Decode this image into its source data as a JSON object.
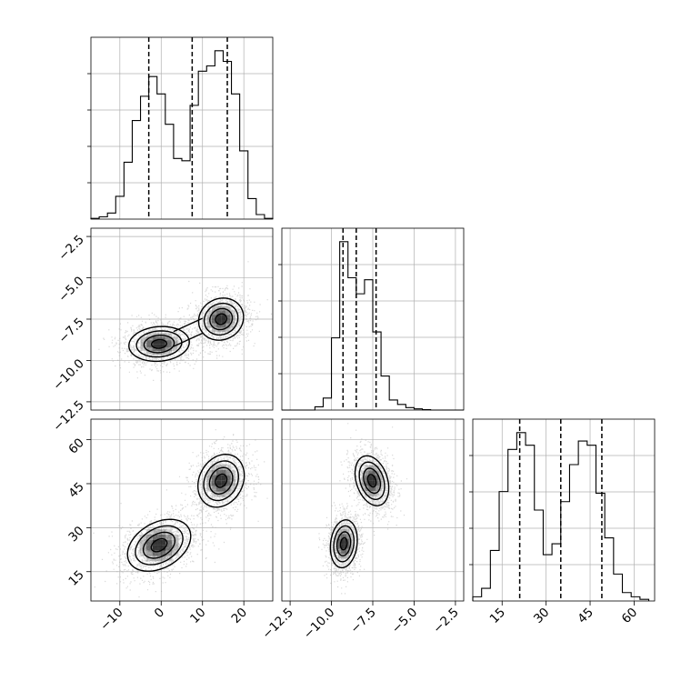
{
  "chart_data": {
    "type": "corner",
    "grid": true,
    "params": [
      {
        "id": "p0",
        "range": [
          -17,
          27
        ],
        "ticks": [
          -10,
          0,
          10,
          20
        ],
        "tick_labels": [
          "−10",
          "0",
          "10",
          "20"
        ]
      },
      {
        "id": "p1",
        "range": [
          -13,
          -2
        ],
        "ticks": [
          -12.5,
          -10.0,
          -7.5,
          -5.0,
          -2.5
        ],
        "tick_labels": [
          "−12.5",
          "−10.0",
          "−7.5",
          "−5.0",
          "−2.5"
        ]
      },
      {
        "id": "p2",
        "range": [
          5,
          67
        ],
        "ticks": [
          15,
          30,
          45,
          60
        ],
        "tick_labels": [
          "15",
          "30",
          "45",
          "60"
        ]
      }
    ],
    "histograms": [
      {
        "param": "p0",
        "bin_edges": [
          -17,
          -15,
          -13,
          -11,
          -9,
          -7,
          -5,
          -3,
          -1,
          1,
          3,
          5,
          7,
          9,
          11,
          13,
          15,
          17,
          19,
          21,
          23,
          25,
          27
        ],
        "counts": [
          1,
          3,
          8,
          30,
          75,
          130,
          162,
          188,
          165,
          125,
          80,
          77,
          150,
          195,
          202,
          222,
          208,
          165,
          90,
          27,
          6,
          1
        ],
        "quantile_lines": [
          -3,
          7.5,
          16
        ]
      },
      {
        "param": "p1",
        "bin_edges": [
          -13.0,
          -12.5,
          -12.0,
          -11.5,
          -11.0,
          -10.5,
          -10.0,
          -9.5,
          -9.0,
          -8.5,
          -8.0,
          -7.5,
          -7.0,
          -6.5,
          -6.0,
          -5.5,
          -5.0,
          -4.5,
          -4.0,
          -3.5,
          -3.0,
          -2.5,
          -2.0
        ],
        "counts": [
          0,
          0,
          0,
          0,
          8,
          30,
          180,
          420,
          330,
          290,
          325,
          195,
          85,
          25,
          14,
          6,
          3,
          1,
          0,
          0,
          0,
          0
        ],
        "quantile_lines": [
          -9.3,
          -8.5,
          -7.3
        ]
      },
      {
        "param": "p2",
        "bin_edges": [
          5,
          8,
          11,
          14,
          17,
          20,
          23,
          26,
          29,
          32,
          35,
          38,
          41,
          44,
          47,
          50,
          53,
          56,
          59,
          62,
          65
        ],
        "counts": [
          5,
          15,
          60,
          130,
          180,
          200,
          185,
          108,
          55,
          68,
          118,
          162,
          190,
          185,
          128,
          75,
          32,
          10,
          5,
          2
        ],
        "quantile_lines": [
          21,
          35,
          49
        ]
      }
    ],
    "joint_panels": [
      {
        "x": "p0",
        "y": "p1",
        "modes": [
          {
            "cx": -0.5,
            "cy": -9.0,
            "sx": 4.3,
            "sy": 0.62,
            "rho": 0.1
          },
          {
            "cx": 14.5,
            "cy": -7.5,
            "sx": 3.2,
            "sy": 0.75,
            "rho": 0.1
          }
        ],
        "bridge": {
          "from": [
            3,
            -8.7
          ],
          "to": [
            10,
            -7.9
          ],
          "half_width": 0.45
        }
      },
      {
        "x": "p0",
        "y": "p2",
        "modes": [
          {
            "cx": -0.5,
            "cy": 24.0,
            "sx": 4.5,
            "sy": 5.2,
            "rho": 0.35
          },
          {
            "cx": 14.5,
            "cy": 46.0,
            "sx": 3.3,
            "sy": 5.3,
            "rho": 0.2
          }
        ]
      },
      {
        "x": "p1",
        "y": "p2",
        "modes": [
          {
            "cx": -9.25,
            "cy": 24.5,
            "sx": 0.48,
            "sy": 4.8,
            "rho": 0.15
          },
          {
            "cx": -7.55,
            "cy": 46.0,
            "sx": 0.6,
            "sy": 5.0,
            "rho": -0.3
          }
        ]
      }
    ],
    "contour_levels": [
      0.5,
      1.0,
      1.5,
      2.0
    ],
    "colors": {
      "line": "#000000",
      "grid": "#b0b0b0",
      "points": "#a8a8a8",
      "density": "#000000"
    }
  }
}
